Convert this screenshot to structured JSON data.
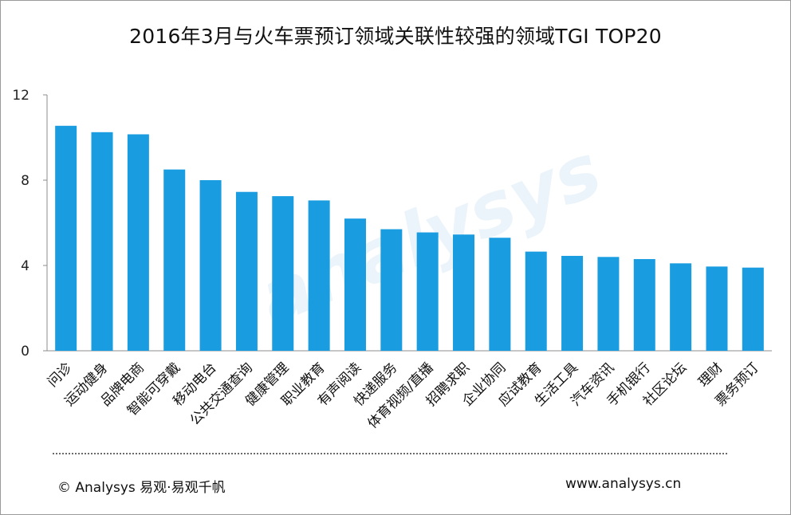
{
  "header": {
    "title": "2016年3月与火车票预订领域关联性较强的领域TGI TOP20"
  },
  "watermark": "analysys",
  "footer": {
    "copyright": "© Analysys 易观·易观千帆",
    "website": "www.analysys.cn"
  },
  "chart_data": {
    "type": "bar",
    "title": "2016年3月与火车票预订领域关联性较强的领域TGI TOP20",
    "categories": [
      "问诊",
      "运动健身",
      "品牌电商",
      "智能可穿戴",
      "移动电台",
      "公共交通查询",
      "健康管理",
      "职业教育",
      "有声阅读",
      "快递服务",
      "体育视频/直播",
      "招聘求职",
      "企业协同",
      "应试教育",
      "生活工具",
      "汽车资讯",
      "手机银行",
      "社区论坛",
      "理财",
      "票务预订"
    ],
    "values": [
      10.55,
      10.25,
      10.15,
      8.5,
      8.0,
      7.45,
      7.25,
      7.05,
      6.2,
      5.7,
      5.55,
      5.45,
      5.3,
      4.65,
      4.45,
      4.4,
      4.3,
      4.1,
      3.95,
      3.9
    ],
    "ylim": [
      0,
      12
    ],
    "yticks": [
      "0",
      "4",
      "8",
      "12"
    ],
    "xlabel": "",
    "ylabel": "",
    "grid": false,
    "bar_color": "#1a9ce1"
  }
}
